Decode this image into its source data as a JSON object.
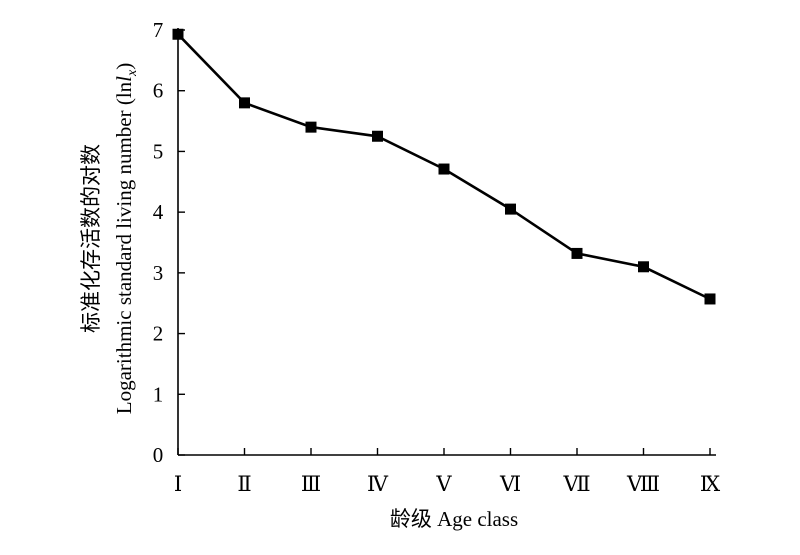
{
  "chart_data": {
    "type": "line",
    "categories": [
      "Ⅰ",
      "Ⅱ",
      "Ⅲ",
      "Ⅳ",
      "Ⅴ",
      "Ⅵ",
      "Ⅶ",
      "Ⅷ",
      "Ⅸ"
    ],
    "series": [
      {
        "values": [
          6.93,
          5.8,
          5.4,
          5.25,
          4.71,
          4.05,
          3.32,
          3.1,
          2.57
        ]
      }
    ],
    "xlabel": "龄级 Age class",
    "ylabel_cn": "标准化存活数的对数",
    "ylabel_en": "Logarithmic standard living number (lnlx)",
    "ylim": [
      0,
      7
    ],
    "yticks": [
      0,
      1,
      2,
      3,
      4,
      5,
      6,
      7
    ],
    "grid": false,
    "legend": "none",
    "marker": "square",
    "line_color": "#000000"
  }
}
